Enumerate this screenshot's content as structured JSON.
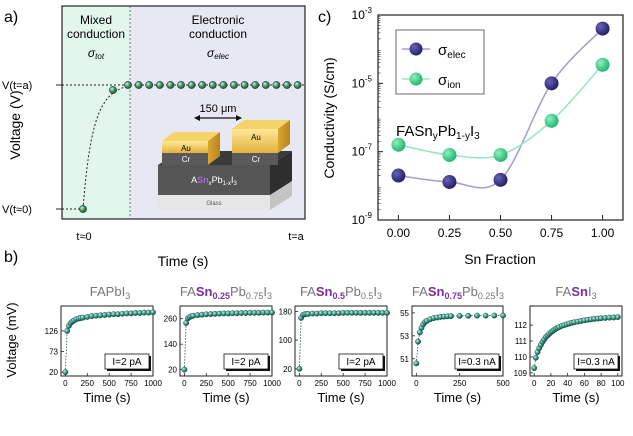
{
  "panel_labels": {
    "a": "a)",
    "b": "b)",
    "c": "c)"
  },
  "panel_a": {
    "region_left_line1": "Mixed",
    "region_left_line2": "conduction",
    "region_left_symbol": "σ",
    "region_left_sub": "tot",
    "region_right_line1": "Electronic",
    "region_right_line2": "conduction",
    "region_right_symbol": "σ",
    "region_right_sub": "elec",
    "ylabel": "Voltage (V)",
    "xlabel": "Time (s)",
    "y_tick_high": "V(t=a)",
    "y_tick_low": "V(t≈0)",
    "x_tick_start": "t≈0",
    "x_tick_end": "t=a",
    "inset": {
      "gap_label": "150 μm",
      "electrode_top": "Au",
      "electrode_bottom": "Cr",
      "layer_prefix": "A",
      "layer_sn": "Sn",
      "layer_sub1": "x",
      "layer_pb": "Pb",
      "layer_sub2": "1-x",
      "layer_i": "I",
      "layer_sub3": "3",
      "substrate": "Glass"
    },
    "colors": {
      "mixed_bg": "#e2f6ee",
      "electronic_bg": "#e8e8f3",
      "dots": "#2f7a52"
    }
  },
  "chart_data": [
    {
      "type": "scatter",
      "title": "",
      "xlabel": "Sn Fraction",
      "ylabel": "Conductivity (S/cm)",
      "annotation": "FASnyPb1-yI3",
      "annotation_parts": {
        "pre": "FASn",
        "y1": "y",
        "mid": "Pb",
        "y2": "1-y",
        "i": "I",
        "three": "3"
      },
      "log_y": true,
      "xlim": [
        -0.1,
        1.1
      ],
      "ylim": [
        1e-09,
        0.001
      ],
      "x_ticks": [
        "0.00",
        "0.25",
        "0.50",
        "0.75",
        "1.00"
      ],
      "y_ticks": [
        {
          "base": "10",
          "exp": "-9"
        },
        {
          "base": "10",
          "exp": "-7"
        },
        {
          "base": "10",
          "exp": "-5"
        },
        {
          "base": "10",
          "exp": "-3"
        }
      ],
      "legend_position": "top-left",
      "x": [
        0,
        0.25,
        0.5,
        0.75,
        1.0
      ],
      "series": [
        {
          "name": "σelec",
          "symbol": "σ",
          "sub": "elec",
          "color": "#30287a",
          "line_color": "#a79fd0",
          "values": [
            2e-08,
            1.3e-08,
            1.5e-08,
            1e-05,
            0.0004
          ]
        },
        {
          "name": "σion",
          "symbol": "σ",
          "sub": "ion",
          "color": "#36d08a",
          "line_color": "#98e8bf",
          "values": [
            1.6e-07,
            8e-08,
            8e-08,
            8e-07,
            3.5e-05
          ]
        }
      ]
    },
    {
      "type": "scatter",
      "title_parts": {
        "pre": "FAPbI",
        "sub": "3",
        "sn": "",
        "mid": ""
      },
      "xlabel": "Time (s)",
      "ylabel": "Voltage (mV)",
      "xlim": [
        -50,
        1000
      ],
      "ylim": [
        10,
        190
      ],
      "x_ticks": [
        0,
        250,
        500,
        750,
        1000
      ],
      "y_ticks": [
        20,
        73,
        126
      ],
      "current_label": "I=2 pA",
      "x": [
        0,
        20,
        40,
        60,
        80,
        100,
        125,
        150,
        175,
        200,
        250,
        300,
        350,
        400,
        450,
        500,
        550,
        600,
        650,
        700,
        750,
        800,
        850,
        900,
        950,
        1000
      ],
      "values": [
        20,
        126,
        139,
        146,
        150,
        153,
        156,
        158,
        159,
        160,
        162,
        164,
        165,
        166,
        167,
        168,
        169,
        169,
        170,
        171,
        171,
        172,
        172,
        173,
        173,
        174
      ]
    },
    {
      "type": "scatter",
      "title_parts": {
        "pre": "FA",
        "sn": "Sn",
        "snsub": "0.25",
        "mid": "Pb",
        "pbsub": "0.75",
        "i": "I",
        "isub": "3"
      },
      "xlabel": "Time (s)",
      "ylabel": "",
      "xlim": [
        -50,
        1000
      ],
      "ylim": [
        -10,
        320
      ],
      "x_ticks": [
        0,
        250,
        500,
        750,
        1000
      ],
      "y_ticks": [
        20,
        140,
        260
      ],
      "current_label": "I=2 pA",
      "x": [
        0,
        20,
        40,
        60,
        80,
        100,
        150,
        200,
        250,
        300,
        350,
        400,
        450,
        500,
        550,
        600,
        650,
        700,
        750,
        800,
        850,
        900,
        950,
        1000
      ],
      "values": [
        20,
        240,
        262,
        268,
        272,
        274,
        277,
        279,
        281,
        282,
        283,
        284,
        285,
        285,
        286,
        286,
        287,
        287,
        288,
        288,
        288,
        289,
        289,
        289
      ]
    },
    {
      "type": "scatter",
      "title_parts": {
        "pre": "FA",
        "sn": "Sn",
        "snsub": "0.5",
        "mid": "Pb",
        "pbsub": "0.5",
        "i": "I",
        "isub": "3"
      },
      "xlabel": "Time (s)",
      "ylabel": "",
      "xlim": [
        -50,
        1000
      ],
      "ylim": [
        0,
        195
      ],
      "x_ticks": [
        0,
        250,
        500,
        750,
        1000
      ],
      "y_ticks": [
        20,
        100,
        180
      ],
      "current_label": "I=2 pA",
      "x": [
        0,
        20,
        40,
        60,
        80,
        100,
        150,
        200,
        250,
        300,
        350,
        400,
        450,
        500,
        550,
        600,
        650,
        700,
        750,
        800,
        850,
        900,
        950,
        1000
      ],
      "values": [
        20,
        162,
        170,
        172,
        173,
        173,
        174,
        174,
        175,
        175,
        175,
        175,
        175,
        176,
        176,
        176,
        176,
        176,
        176,
        176,
        176,
        176,
        176,
        176
      ]
    },
    {
      "type": "scatter",
      "title_parts": {
        "pre": "FA",
        "sn": "Sn",
        "snsub": "0.75",
        "mid": "Pb",
        "pbsub": "0.25",
        "i": "I",
        "isub": "3"
      },
      "xlabel": "Time (s)",
      "ylabel": "",
      "xlim": [
        -25,
        500
      ],
      "ylim": [
        49.5,
        55.6
      ],
      "x_ticks": [
        0,
        250,
        500
      ],
      "y_ticks": [
        51,
        53,
        55
      ],
      "current_label": "I=0.3 nA",
      "x": [
        0,
        10,
        20,
        30,
        40,
        50,
        60,
        80,
        100,
        120,
        140,
        160,
        180,
        200,
        250,
        300,
        350,
        400,
        450,
        500
      ],
      "values": [
        50.6,
        52.5,
        53.3,
        53.7,
        54.0,
        54.2,
        54.3,
        54.45,
        54.55,
        54.6,
        54.65,
        54.68,
        54.7,
        54.72,
        54.74,
        54.75,
        54.76,
        54.76,
        54.77,
        54.77
      ]
    },
    {
      "type": "scatter",
      "title_parts": {
        "pre": "FA",
        "sn": "Sn",
        "snsub": "",
        "mid": "",
        "pbsub": "",
        "i": "I",
        "isub": "3"
      },
      "xlabel": "Time (s)",
      "ylabel": "",
      "xlim": [
        -5,
        105
      ],
      "ylim": [
        108.8,
        113.2
      ],
      "x_ticks": [
        0,
        20,
        40,
        60,
        80,
        100
      ],
      "y_ticks": [
        109,
        110,
        111,
        112
      ],
      "current_label": "I=0.3 nA",
      "x": [
        0,
        2,
        4,
        6,
        8,
        10,
        12,
        14,
        16,
        18,
        20,
        22,
        24,
        26,
        28,
        30,
        33,
        36,
        39,
        42,
        45,
        48,
        52,
        56,
        60,
        64,
        68,
        72,
        76,
        80,
        85,
        90,
        95,
        100
      ],
      "values": [
        109.3,
        109.95,
        110.3,
        110.55,
        110.75,
        110.95,
        111.1,
        111.25,
        111.35,
        111.45,
        111.55,
        111.62,
        111.7,
        111.77,
        111.83,
        111.88,
        111.95,
        112.0,
        112.05,
        112.1,
        112.14,
        112.18,
        112.22,
        112.26,
        112.3,
        112.33,
        112.36,
        112.39,
        112.41,
        112.43,
        112.45,
        112.47,
        112.48,
        112.5
      ]
    }
  ],
  "small_colors": {
    "dot_fill": "#2f8f7c",
    "dot_stroke": "#12463c",
    "title_gray": "#777777",
    "sn_purple": "#7b2fa4"
  }
}
